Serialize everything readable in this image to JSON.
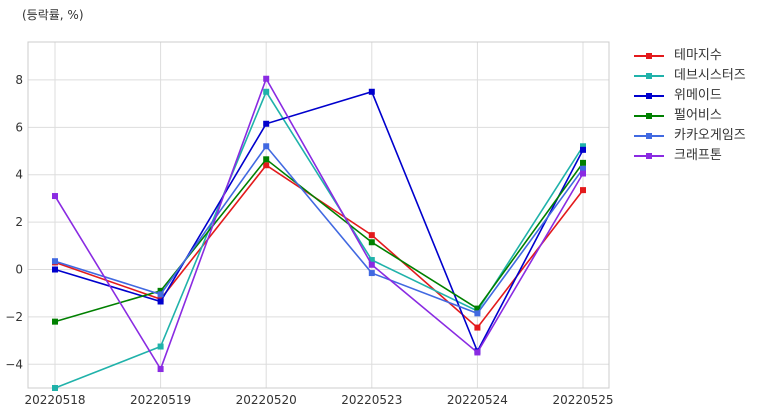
{
  "unit_label": "(등락률, %)",
  "chart_data": {
    "type": "line",
    "categories": [
      "20220518",
      "20220519",
      "20220520",
      "20220523",
      "20220524",
      "20220525"
    ],
    "ylim": [
      -5,
      9.6
    ],
    "yticks": [
      -4,
      -2,
      0,
      2,
      4,
      6,
      8
    ],
    "grid": true,
    "legend_position": "outside-right",
    "series": [
      {
        "name": "테마지수",
        "color": "#e31a1c",
        "values": [
          0.3,
          -1.25,
          4.4,
          1.45,
          -2.45,
          3.35
        ]
      },
      {
        "name": "데브시스터즈",
        "color": "#20b2aa",
        "values": [
          -5.0,
          -3.25,
          7.5,
          0.4,
          -1.75,
          5.2
        ]
      },
      {
        "name": "위메이드",
        "color": "#0000cd",
        "values": [
          0.0,
          -1.35,
          6.15,
          7.5,
          -3.45,
          5.05
        ]
      },
      {
        "name": "펄어비스",
        "color": "#008000",
        "values": [
          -2.2,
          -0.9,
          4.65,
          1.15,
          -1.65,
          4.5
        ]
      },
      {
        "name": "카카오게임즈",
        "color": "#4169e1",
        "values": [
          0.35,
          -1.05,
          5.2,
          -0.15,
          -1.85,
          4.25
        ]
      },
      {
        "name": "크래프톤",
        "color": "#8a2be2",
        "values": [
          3.1,
          -4.2,
          8.05,
          0.2,
          -3.5,
          4.05
        ]
      }
    ]
  }
}
